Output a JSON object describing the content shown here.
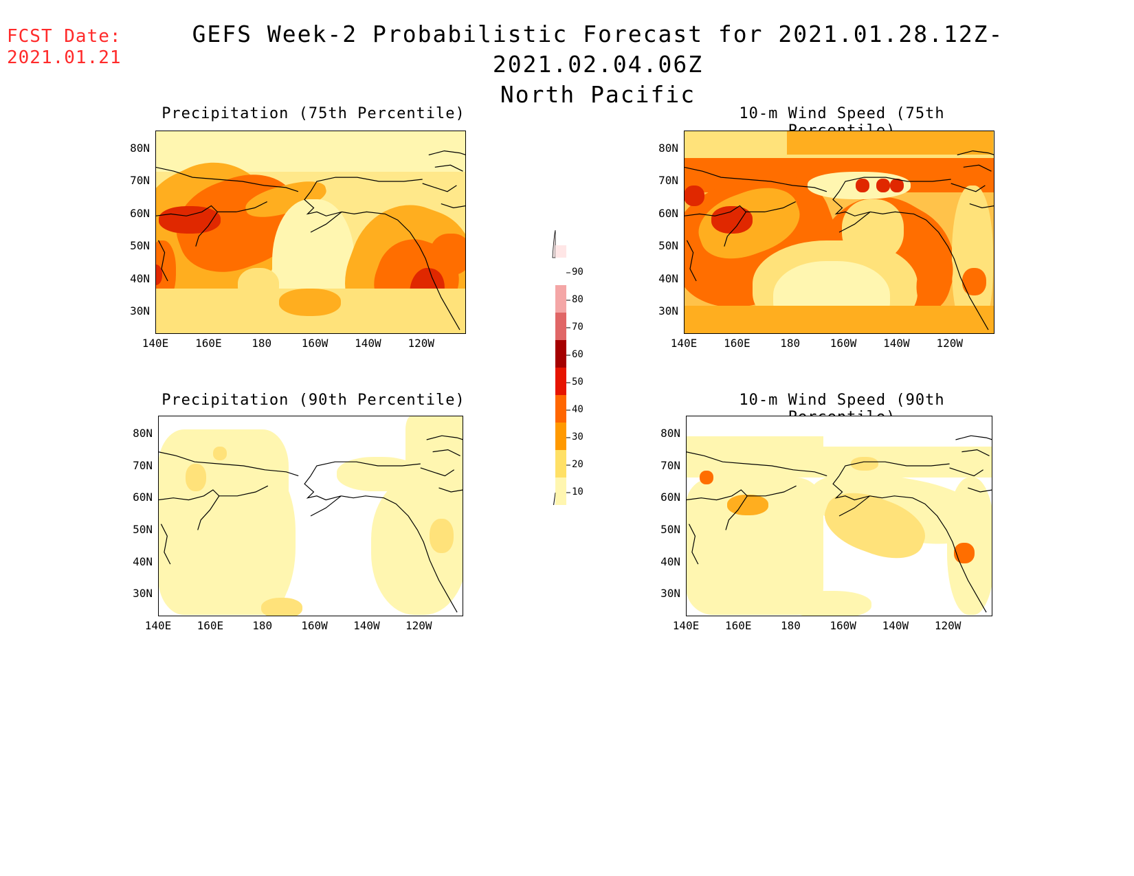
{
  "header": {
    "fcst_label": "FCST Date:",
    "fcst_date": "2021.01.21",
    "title": "GEFS Week-2 Probabilistic Forecast for 2021.01.28.12Z-2021.02.04.06Z",
    "subtitle": "North Pacific"
  },
  "panels": [
    {
      "title": "Precipitation (75th Percentile)"
    },
    {
      "title": "10-m Wind Speed (75th Percentile)"
    },
    {
      "title": "Precipitation (90th Percentile)"
    },
    {
      "title": "10-m Wind Speed (90th Percentile)"
    }
  ],
  "axes": {
    "lat_labels": [
      "80N",
      "70N",
      "60N",
      "50N",
      "40N",
      "30N"
    ],
    "lon_labels": [
      "140E",
      "160E",
      "180",
      "160W",
      "140W",
      "120W"
    ]
  },
  "colorbar": {
    "labels": [
      "90",
      "80",
      "70",
      "60",
      "50",
      "40",
      "30",
      "20",
      "10"
    ],
    "colors": [
      "#ffe6e6",
      "#f4a6a6",
      "#e06666",
      "#a50000",
      "#e61400",
      "#ff6600",
      "#ff9900",
      "#ffe066",
      "#fff6b0"
    ]
  },
  "palette": {
    "c10": "#fff6b0",
    "c20": "#ffe27a",
    "c30": "#ffae1f",
    "c40": "#ff6e00",
    "c50": "#e02800",
    "c60": "#a30000"
  }
}
